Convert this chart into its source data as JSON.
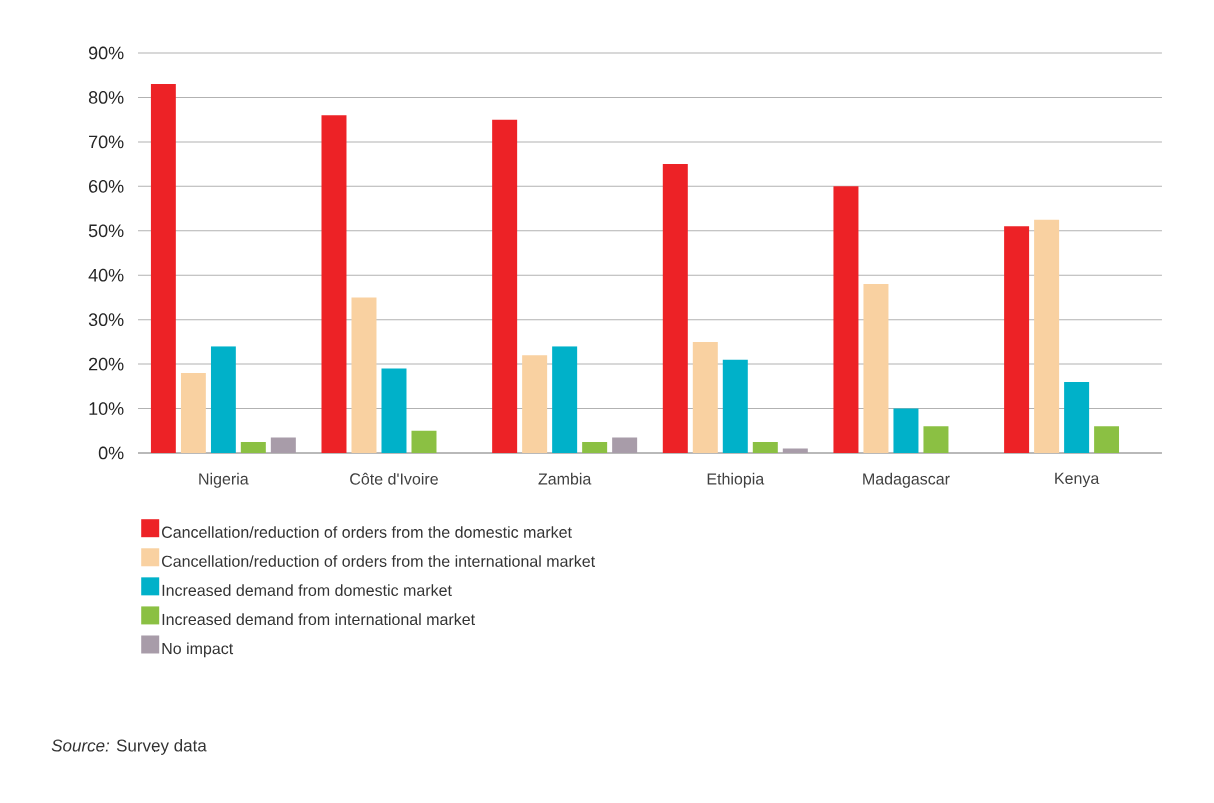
{
  "chart_data": {
    "type": "bar",
    "categories": [
      "Nigeria",
      "Côte d'Ivoire",
      "Zambia",
      "Ethiopia",
      "Madagascar",
      "Kenya"
    ],
    "series": [
      {
        "name": "Cancellation/reduction of orders from the domestic market",
        "color": "#ed2226",
        "values": [
          83,
          76,
          75,
          65,
          60,
          51
        ]
      },
      {
        "name": "Cancellation/reduction of orders from the international market",
        "color": "#f9d1a1",
        "values": [
          18,
          35,
          22,
          25,
          38,
          52.5
        ]
      },
      {
        "name": "Increased demand from domestic market",
        "color": "#00b1c9",
        "values": [
          24,
          19,
          24,
          21,
          10,
          16
        ]
      },
      {
        "name": "Increased demand from international market",
        "color": "#8bc043",
        "values": [
          2.5,
          5,
          2.5,
          2.5,
          6,
          6
        ]
      },
      {
        "name": "No impact",
        "color": "#a89ca9",
        "values": [
          3.5,
          null,
          3.5,
          1,
          null,
          null
        ]
      }
    ],
    "ylim": [
      0,
      90
    ],
    "yticks": [
      {
        "value": 0,
        "label": "0%"
      },
      {
        "value": 10,
        "label": "10%"
      },
      {
        "value": 20,
        "label": "20%"
      },
      {
        "value": 30,
        "label": "30%"
      },
      {
        "value": 40,
        "label": "40%"
      },
      {
        "value": 50,
        "label": "50%"
      },
      {
        "value": 60,
        "label": "60%"
      },
      {
        "value": 70,
        "label": "70%"
      },
      {
        "value": 80,
        "label": "80%"
      },
      {
        "value": 90,
        "label": "90%"
      }
    ],
    "grid": "y",
    "legend": "bottom",
    "annotations": [
      "*Source:* Survey data"
    ]
  }
}
